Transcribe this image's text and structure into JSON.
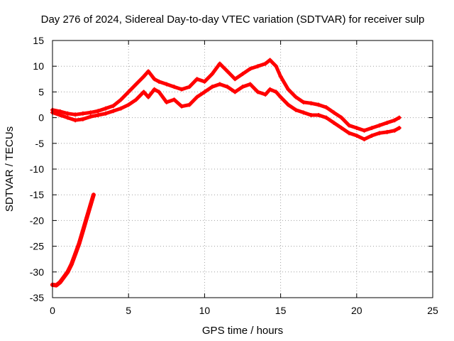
{
  "chart_data": {
    "type": "line",
    "title": "Day 276 of 2024, Sidereal Day-to-day VTEC variation (SDTVAR) for receiver sulp",
    "xlabel": "GPS time / hours",
    "ylabel": "SDTVAR / TECUs",
    "xlim": [
      0,
      25
    ],
    "ylim": [
      -35,
      15
    ],
    "xticks": [
      0,
      5,
      10,
      15,
      20,
      25
    ],
    "yticks": [
      -35,
      -30,
      -25,
      -20,
      -15,
      -10,
      -5,
      0,
      5,
      10,
      15
    ],
    "xtick_labels": [
      "0",
      "5",
      "10",
      "15",
      "20",
      "25"
    ],
    "ytick_labels": [
      "-35",
      "-30",
      "-25",
      "-20",
      "-15",
      "-10",
      "-5",
      "0",
      "5",
      "10",
      "15"
    ],
    "grid": true,
    "series": [
      {
        "name": "sdtvar-band-upper",
        "color": "#ff0000",
        "x": [
          0.0,
          0.5,
          1.0,
          1.5,
          2.0,
          2.5,
          3.0,
          3.5,
          4.0,
          4.5,
          5.0,
          5.5,
          6.0,
          6.3,
          6.7,
          7.0,
          7.5,
          8.0,
          8.5,
          9.0,
          9.5,
          10.0,
          10.5,
          11.0,
          11.5,
          12.0,
          12.5,
          13.0,
          13.5,
          14.0,
          14.3,
          14.7,
          15.0,
          15.5,
          16.0,
          16.5,
          17.0,
          17.5,
          18.0,
          18.5,
          19.0,
          19.5,
          20.0,
          20.5,
          21.0,
          21.5,
          22.0,
          22.5,
          22.8
        ],
        "values": [
          1.5,
          1.2,
          0.8,
          0.6,
          0.8,
          1.0,
          1.3,
          1.8,
          2.3,
          3.5,
          5.0,
          6.5,
          8.0,
          9.0,
          7.5,
          7.0,
          6.5,
          6.0,
          5.5,
          6.0,
          7.5,
          7.0,
          8.5,
          10.5,
          9.0,
          7.5,
          8.5,
          9.5,
          10.0,
          10.5,
          11.2,
          10.0,
          8.0,
          5.5,
          4.0,
          3.0,
          2.8,
          2.5,
          2.0,
          1.0,
          0.0,
          -1.5,
          -2.0,
          -2.5,
          -2.0,
          -1.5,
          -1.0,
          -0.5,
          0.0
        ]
      },
      {
        "name": "sdtvar-band-lower",
        "color": "#ff0000",
        "x": [
          0.0,
          0.5,
          1.0,
          1.5,
          2.0,
          2.5,
          3.0,
          3.5,
          4.0,
          4.5,
          5.0,
          5.5,
          6.0,
          6.3,
          6.7,
          7.0,
          7.5,
          8.0,
          8.5,
          9.0,
          9.5,
          10.0,
          10.5,
          11.0,
          11.5,
          12.0,
          12.5,
          13.0,
          13.5,
          14.0,
          14.3,
          14.7,
          15.0,
          15.5,
          16.0,
          16.5,
          17.0,
          17.5,
          18.0,
          18.5,
          19.0,
          19.5,
          20.0,
          20.5,
          21.0,
          21.5,
          22.0,
          22.5,
          22.8
        ],
        "values": [
          1.0,
          0.5,
          0.0,
          -0.5,
          -0.3,
          0.2,
          0.5,
          0.8,
          1.3,
          1.8,
          2.5,
          3.5,
          5.0,
          4.0,
          5.5,
          5.0,
          3.0,
          3.5,
          2.2,
          2.5,
          4.0,
          5.0,
          6.0,
          6.5,
          6.0,
          5.0,
          6.0,
          6.5,
          5.0,
          4.5,
          5.5,
          5.0,
          4.0,
          2.5,
          1.5,
          1.0,
          0.5,
          0.5,
          0.0,
          -1.0,
          -2.0,
          -3.0,
          -3.5,
          -4.2,
          -3.5,
          -3.0,
          -2.8,
          -2.5,
          -2.0
        ]
      },
      {
        "name": "sdtvar-early-arc",
        "color": "#ff0000",
        "x": [
          0.0,
          0.25,
          0.5,
          0.75,
          1.0,
          1.25,
          1.5,
          1.75,
          2.0,
          2.25,
          2.5,
          2.7
        ],
        "values": [
          -32.5,
          -32.6,
          -32.0,
          -31.0,
          -30.0,
          -28.5,
          -26.5,
          -24.5,
          -22.0,
          -19.5,
          -17.0,
          -15.0
        ]
      }
    ]
  }
}
